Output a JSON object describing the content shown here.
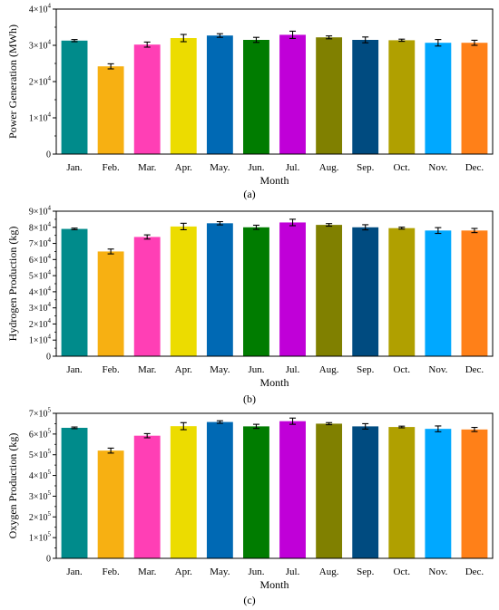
{
  "colors": [
    "#008b8b",
    "#f7b012",
    "#ff3fb5",
    "#ecdc00",
    "#0069b4",
    "#007c00",
    "#c000d8",
    "#808000",
    "#004b80",
    "#b0a000",
    "#00a8ff",
    "#ff8018"
  ],
  "chart_data": [
    {
      "type": "bar",
      "caption": "(a)",
      "categories": [
        "Jan.",
        "Feb.",
        "Mar.",
        "Apr.",
        "May.",
        "Jun.",
        "Jul.",
        "Aug.",
        "Sep.",
        "Oct.",
        "Nov.",
        "Dec."
      ],
      "values": [
        31300,
        24200,
        30200,
        32000,
        32700,
        31500,
        32900,
        32200,
        31500,
        31400,
        30700,
        30700
      ],
      "errors": [
        300,
        700,
        700,
        1000,
        500,
        700,
        1000,
        400,
        800,
        300,
        900,
        700
      ],
      "xlabel": "Month",
      "ylabel": "Power Generation (MWh)",
      "ylim": [
        0,
        40000
      ],
      "yticks": [
        0,
        10000,
        20000,
        30000,
        40000
      ],
      "ytick_labels": [
        {
          "base": "0",
          "exp": ""
        },
        {
          "base": "1×10",
          "exp": "4"
        },
        {
          "base": "2×10",
          "exp": "4"
        },
        {
          "base": "3×10",
          "exp": "4"
        },
        {
          "base": "4×10",
          "exp": "4"
        }
      ]
    },
    {
      "type": "bar",
      "caption": "(b)",
      "categories": [
        "Jan.",
        "Feb.",
        "Mar.",
        "Apr.",
        "May.",
        "Jun.",
        "Jul.",
        "Aug.",
        "Sep.",
        "Oct.",
        "Nov.",
        "Dec."
      ],
      "values": [
        79000,
        65000,
        74000,
        80500,
        82500,
        80000,
        83000,
        81500,
        80000,
        79500,
        78000,
        78000
      ],
      "errors": [
        500,
        1500,
        1300,
        2000,
        1000,
        1300,
        2000,
        800,
        1600,
        600,
        1800,
        1300
      ],
      "xlabel": "Month",
      "ylabel": "Hydrogen Production (kg)",
      "ylim": [
        0,
        90000
      ],
      "yticks": [
        0,
        10000,
        20000,
        30000,
        40000,
        50000,
        60000,
        70000,
        80000,
        90000
      ],
      "ytick_labels": [
        {
          "base": "0",
          "exp": ""
        },
        {
          "base": "1×10",
          "exp": "4"
        },
        {
          "base": "2×10",
          "exp": "4"
        },
        {
          "base": "3×10",
          "exp": "4"
        },
        {
          "base": "4×10",
          "exp": "4"
        },
        {
          "base": "5×10",
          "exp": "4"
        },
        {
          "base": "6×10",
          "exp": "4"
        },
        {
          "base": "7×10",
          "exp": "4"
        },
        {
          "base": "8×10",
          "exp": "4"
        },
        {
          "base": "9×10",
          "exp": "4"
        }
      ]
    },
    {
      "type": "bar",
      "caption": "(c)",
      "categories": [
        "Jan.",
        "Feb.",
        "Mar.",
        "Apr.",
        "May.",
        "Jun.",
        "Jul.",
        "Aug.",
        "Sep.",
        "Oct.",
        "Nov.",
        "Dec."
      ],
      "values": [
        630000,
        520000,
        592000,
        638000,
        658000,
        637000,
        662000,
        650000,
        637000,
        634000,
        625000,
        622000
      ],
      "errors": [
        4000,
        12000,
        10000,
        17000,
        6000,
        10000,
        15000,
        5000,
        13000,
        4000,
        14000,
        10000
      ],
      "xlabel": "Month",
      "ylabel": "Oxygen Production (kg)",
      "ylim": [
        0,
        700000
      ],
      "yticks": [
        0,
        100000,
        200000,
        300000,
        400000,
        500000,
        600000,
        700000
      ],
      "ytick_labels": [
        {
          "base": "0",
          "exp": ""
        },
        {
          "base": "1×10",
          "exp": "5"
        },
        {
          "base": "2×10",
          "exp": "5"
        },
        {
          "base": "3×10",
          "exp": "5"
        },
        {
          "base": "4×10",
          "exp": "5"
        },
        {
          "base": "5×10",
          "exp": "5"
        },
        {
          "base": "6×10",
          "exp": "5"
        },
        {
          "base": "7×10",
          "exp": "5"
        }
      ]
    }
  ]
}
